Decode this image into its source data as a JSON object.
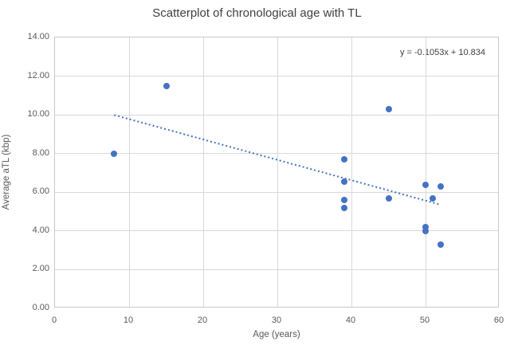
{
  "chart_data": {
    "type": "scatter",
    "title": "Scatterplot of chronological age with TL",
    "xlabel": "Age (years)",
    "ylabel": "Average aTL (kbp)",
    "xlim": [
      0,
      60
    ],
    "ylim": [
      0,
      14
    ],
    "x_ticks": [
      "0",
      "10",
      "20",
      "30",
      "40",
      "50",
      "60"
    ],
    "y_ticks": [
      "0.00",
      "2.00",
      "4.00",
      "6.00",
      "8.00",
      "10.00",
      "12.00",
      "14.00"
    ],
    "grid": true,
    "legend": "none",
    "annotation": "y = -0.1053x + 10.834",
    "points": [
      {
        "x": 8,
        "y": 8.0
      },
      {
        "x": 15,
        "y": 11.5
      },
      {
        "x": 39,
        "y": 7.7
      },
      {
        "x": 39,
        "y": 6.55
      },
      {
        "x": 39,
        "y": 5.6
      },
      {
        "x": 39,
        "y": 5.2
      },
      {
        "x": 45,
        "y": 10.3
      },
      {
        "x": 45,
        "y": 5.7
      },
      {
        "x": 50,
        "y": 6.4
      },
      {
        "x": 50,
        "y": 4.2
      },
      {
        "x": 50,
        "y": 4.0
      },
      {
        "x": 51,
        "y": 5.7
      },
      {
        "x": 52,
        "y": 6.3
      },
      {
        "x": 52,
        "y": 3.3
      }
    ],
    "trendline": {
      "slope": -0.1053,
      "intercept": 10.834,
      "x_start": 8,
      "x_end": 52,
      "style": "dotted"
    },
    "colors": {
      "point": "#4472c4",
      "trendline": "#4472c4",
      "gridline": "#d9d9d9",
      "axis_text": "#595959",
      "title_text": "#404040"
    }
  }
}
